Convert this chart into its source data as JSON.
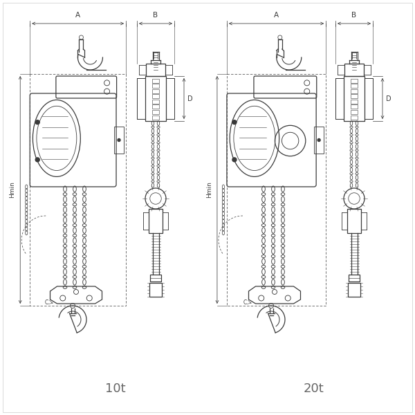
{
  "bg_color": "#ffffff",
  "line_color": "#3a3a3a",
  "dim_color": "#3a3a3a",
  "label_10t": "10t",
  "label_20t": "20t",
  "label_A": "A",
  "label_B": "B",
  "label_D": "D",
  "label_Hmin": "Hmin",
  "label_C": "C",
  "fig_width": 6.0,
  "fig_height": 6.0,
  "dpi": 100
}
